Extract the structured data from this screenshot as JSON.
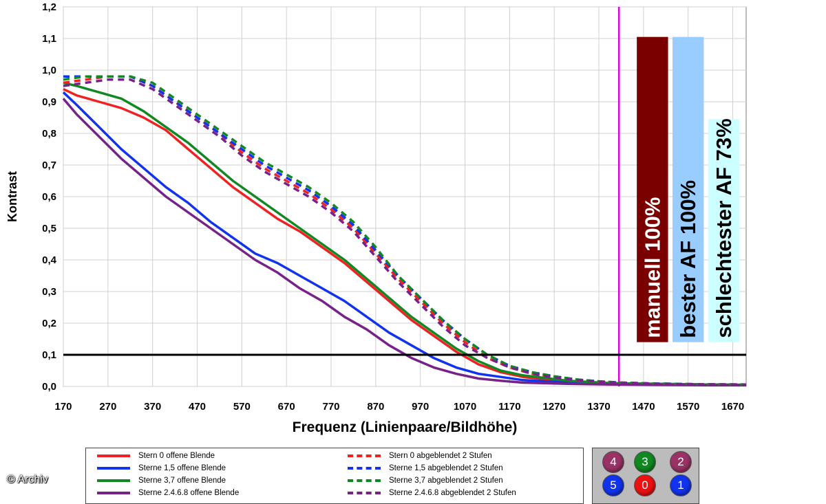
{
  "chart_data": {
    "type": "line",
    "title": "",
    "xlabel": "Frequenz (Linienpaare/Bildhöhe)",
    "ylabel": "Kontrast",
    "xlim": [
      170,
      1700
    ],
    "ylim": [
      0,
      1.2
    ],
    "xticks": [
      "170",
      "270",
      "370",
      "470",
      "570",
      "670",
      "770",
      "870",
      "970",
      "1070",
      "1170",
      "1270",
      "1370",
      "1470",
      "1570",
      "1670"
    ],
    "yticks": [
      "0,0",
      "0,1",
      "0,2",
      "0,3",
      "0,4",
      "0,5",
      "0,6",
      "0,7",
      "0,8",
      "0,9",
      "1,0",
      "1,1",
      "1,2"
    ],
    "grid": true,
    "reference_line": {
      "y": 0.1,
      "color": "#000000"
    },
    "vertical_line": {
      "x": 1415,
      "color": "#e000e0"
    },
    "bars": [
      {
        "label": "manuell 100%",
        "x_start": 1455,
        "x_end": 1525,
        "value": 1.105,
        "color": "#7a0000",
        "text_color": "#ffffff"
      },
      {
        "label": "bester AF 100%",
        "x_start": 1535,
        "x_end": 1605,
        "value": 1.105,
        "color": "#99ccff",
        "text_color": "#000000"
      },
      {
        "label": "schlechtester AF 73%",
        "x_start": 1615,
        "x_end": 1685,
        "value": 0.845,
        "color": "#ccffff",
        "text_color": "#000000"
      }
    ],
    "series": [
      {
        "name": "Stern 0 offene Blende",
        "color": "#ee2222",
        "dash": false,
        "x": [
          170,
          200,
          250,
          300,
          350,
          400,
          450,
          500,
          550,
          600,
          650,
          700,
          750,
          800,
          850,
          900,
          950,
          1000,
          1050,
          1100,
          1150,
          1200,
          1300,
          1400,
          1500,
          1600,
          1700
        ],
        "y": [
          0.94,
          0.92,
          0.9,
          0.88,
          0.85,
          0.81,
          0.75,
          0.69,
          0.63,
          0.58,
          0.53,
          0.49,
          0.44,
          0.39,
          0.33,
          0.27,
          0.21,
          0.16,
          0.11,
          0.07,
          0.045,
          0.03,
          0.015,
          0.01,
          0.008,
          0.006,
          0.005
        ]
      },
      {
        "name": "Sterne 1,5 offene Blende",
        "color": "#1133ee",
        "dash": false,
        "x": [
          170,
          200,
          250,
          300,
          350,
          400,
          450,
          500,
          550,
          600,
          650,
          700,
          750,
          800,
          850,
          900,
          950,
          1000,
          1050,
          1100,
          1150,
          1200,
          1300,
          1400,
          1500,
          1600,
          1700
        ],
        "y": [
          0.93,
          0.89,
          0.82,
          0.75,
          0.69,
          0.63,
          0.58,
          0.52,
          0.47,
          0.42,
          0.39,
          0.35,
          0.31,
          0.27,
          0.22,
          0.17,
          0.13,
          0.09,
          0.06,
          0.04,
          0.03,
          0.02,
          0.012,
          0.009,
          0.007,
          0.006,
          0.005
        ]
      },
      {
        "name": "Sterne 3,7 offene Blende",
        "color": "#118822",
        "dash": false,
        "x": [
          170,
          200,
          250,
          300,
          350,
          400,
          450,
          500,
          550,
          600,
          650,
          700,
          750,
          800,
          850,
          900,
          950,
          1000,
          1050,
          1100,
          1150,
          1200,
          1300,
          1400,
          1500,
          1600,
          1700
        ],
        "y": [
          0.96,
          0.95,
          0.93,
          0.91,
          0.87,
          0.82,
          0.77,
          0.71,
          0.65,
          0.6,
          0.55,
          0.5,
          0.45,
          0.4,
          0.34,
          0.28,
          0.22,
          0.17,
          0.12,
          0.08,
          0.05,
          0.035,
          0.018,
          0.01,
          0.008,
          0.006,
          0.005
        ]
      },
      {
        "name": "Sterne 2.4.6.8 offene Blende",
        "color": "#772288",
        "dash": false,
        "x": [
          170,
          200,
          250,
          300,
          350,
          400,
          450,
          500,
          550,
          600,
          650,
          700,
          750,
          800,
          850,
          900,
          950,
          1000,
          1050,
          1100,
          1150,
          1200,
          1300,
          1400,
          1500,
          1600,
          1700
        ],
        "y": [
          0.91,
          0.86,
          0.79,
          0.72,
          0.66,
          0.6,
          0.55,
          0.5,
          0.45,
          0.4,
          0.36,
          0.31,
          0.27,
          0.22,
          0.18,
          0.13,
          0.09,
          0.06,
          0.04,
          0.025,
          0.018,
          0.012,
          0.008,
          0.006,
          0.005,
          0.004,
          0.004
        ]
      },
      {
        "name": "Stern 0 abgeblendet 2 Stufen",
        "color": "#ee2222",
        "dash": true,
        "x": [
          170,
          220,
          270,
          320,
          370,
          420,
          470,
          520,
          570,
          620,
          670,
          720,
          770,
          820,
          870,
          920,
          970,
          1020,
          1070,
          1120,
          1170,
          1220,
          1270,
          1320,
          1370,
          1420,
          1500,
          1600,
          1700
        ],
        "y": [
          0.96,
          0.97,
          0.98,
          0.98,
          0.95,
          0.9,
          0.85,
          0.8,
          0.74,
          0.69,
          0.65,
          0.61,
          0.56,
          0.5,
          0.42,
          0.34,
          0.27,
          0.2,
          0.14,
          0.09,
          0.06,
          0.04,
          0.03,
          0.02,
          0.015,
          0.012,
          0.009,
          0.007,
          0.006
        ]
      },
      {
        "name": "Sterne 1,5 abgeblendet 2 Stufen",
        "color": "#1133ee",
        "dash": true,
        "x": [
          170,
          220,
          270,
          320,
          370,
          420,
          470,
          520,
          570,
          620,
          670,
          720,
          770,
          820,
          870,
          920,
          970,
          1020,
          1070,
          1120,
          1170,
          1220,
          1270,
          1320,
          1370,
          1420,
          1500,
          1600,
          1700
        ],
        "y": [
          0.98,
          0.98,
          0.98,
          0.98,
          0.95,
          0.9,
          0.85,
          0.8,
          0.75,
          0.7,
          0.66,
          0.62,
          0.57,
          0.51,
          0.43,
          0.35,
          0.28,
          0.21,
          0.15,
          0.1,
          0.065,
          0.045,
          0.032,
          0.022,
          0.016,
          0.012,
          0.009,
          0.007,
          0.006
        ]
      },
      {
        "name": "Sterne 3,7 abgeblendet 2 Stufen",
        "color": "#118822",
        "dash": true,
        "x": [
          170,
          220,
          270,
          320,
          370,
          420,
          470,
          520,
          570,
          620,
          670,
          720,
          770,
          820,
          870,
          920,
          970,
          1020,
          1070,
          1120,
          1170,
          1220,
          1270,
          1320,
          1370,
          1420,
          1500,
          1600,
          1700
        ],
        "y": [
          0.97,
          0.98,
          0.98,
          0.98,
          0.96,
          0.91,
          0.86,
          0.81,
          0.76,
          0.71,
          0.67,
          0.63,
          0.58,
          0.52,
          0.44,
          0.35,
          0.28,
          0.21,
          0.15,
          0.1,
          0.065,
          0.045,
          0.032,
          0.022,
          0.016,
          0.012,
          0.009,
          0.007,
          0.006
        ]
      },
      {
        "name": "Sterne 2.4.6.8 abgeblendet 2 Stufen",
        "color": "#772288",
        "dash": true,
        "x": [
          170,
          220,
          270,
          320,
          370,
          420,
          470,
          520,
          570,
          620,
          670,
          720,
          770,
          820,
          870,
          920,
          970,
          1020,
          1070,
          1120,
          1170,
          1220,
          1270,
          1320,
          1370,
          1420,
          1500,
          1600,
          1700
        ],
        "y": [
          0.95,
          0.96,
          0.97,
          0.97,
          0.94,
          0.89,
          0.84,
          0.79,
          0.73,
          0.68,
          0.64,
          0.6,
          0.55,
          0.49,
          0.41,
          0.33,
          0.26,
          0.19,
          0.13,
          0.09,
          0.06,
          0.04,
          0.028,
          0.02,
          0.015,
          0.011,
          0.008,
          0.006,
          0.005
        ]
      }
    ]
  },
  "marker_key": [
    {
      "label": "4",
      "color": "#993366"
    },
    {
      "label": "3",
      "color": "#118822"
    },
    {
      "label": "2",
      "color": "#993366"
    },
    {
      "label": "5",
      "color": "#1133ee"
    },
    {
      "label": "0",
      "color": "#ee1111"
    },
    {
      "label": "1",
      "color": "#1133ee"
    }
  ],
  "copyright": "© Archiv"
}
